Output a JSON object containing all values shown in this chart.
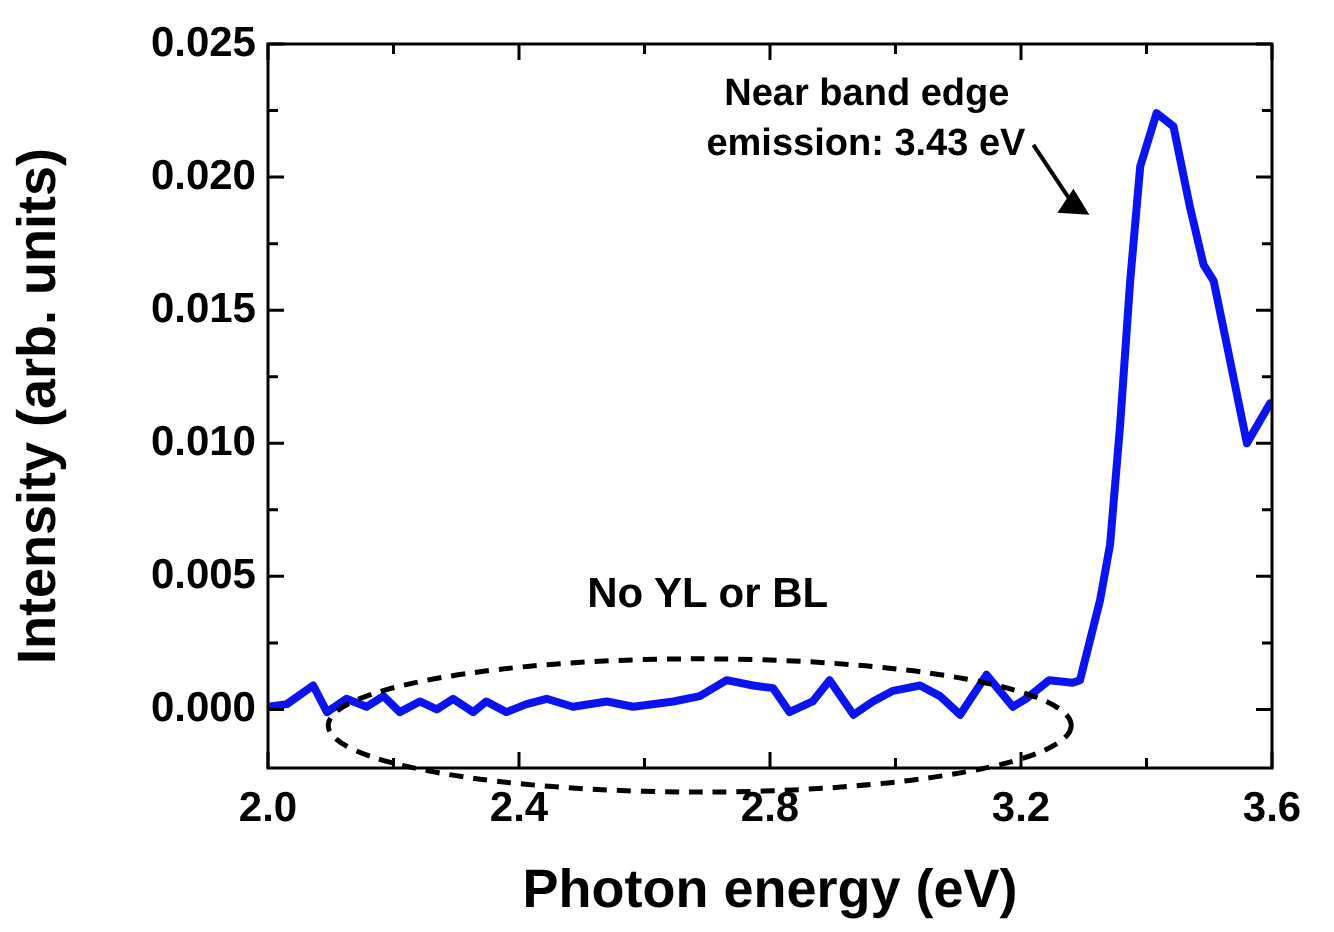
{
  "chart_data": {
    "type": "line",
    "xlabel": "Photon energy (eV)",
    "ylabel": "Intensity (arb. units)",
    "xlim": [
      2.0,
      3.6
    ],
    "xticks": [
      {
        "value": 2.0,
        "label": "2.0"
      },
      2.4,
      2.8,
      3.2,
      3.6
    ],
    "ylim": [
      -0.0022,
      0.025
    ],
    "yticks": [
      {
        "value": 0,
        "label": "0.000"
      },
      {
        "value": 0.005,
        "label": "0.005"
      },
      {
        "value": 0.01,
        "label": "0.010"
      },
      {
        "value": 0.015,
        "label": "0.015"
      },
      {
        "value": 0.02,
        "label": "0.020"
      },
      {
        "value": 0.025,
        "label": "0.025"
      }
    ],
    "grid": false,
    "legend": false,
    "marker": "none",
    "line_style": "solid",
    "annotations": [
      "Near band edge\nemission: 3.43 eV",
      "No YL or BL"
    ],
    "x": [
      2.0,
      2.03,
      2.072,
      2.094,
      2.125,
      2.157,
      2.184,
      2.21,
      2.242,
      2.269,
      2.295,
      2.327,
      2.348,
      2.38,
      2.412,
      2.444,
      2.486,
      2.54,
      2.582,
      2.646,
      2.688,
      2.731,
      2.773,
      2.805,
      2.831,
      2.868,
      2.895,
      2.933,
      2.964,
      2.996,
      3.039,
      3.071,
      3.103,
      3.145,
      3.187,
      3.208,
      3.245,
      3.282,
      3.294,
      3.326,
      3.342,
      3.358,
      3.374,
      3.39,
      3.416,
      3.443,
      3.469,
      3.491,
      3.507,
      3.528,
      3.56,
      3.597
    ],
    "series": [
      {
        "color": "#0a14f0",
        "values": [
          0.0001,
          0.0002,
          0.0009,
          -0.0001,
          0.0004,
          0.0001,
          0.0005,
          -0.0001,
          0.0003,
          0.0,
          0.0004,
          -0.0001,
          0.0003,
          -0.0001,
          0.0002,
          0.0004,
          0.0001,
          0.0003,
          0.0001,
          0.0003,
          0.0005,
          0.0011,
          0.0009,
          0.0008,
          -0.0001,
          0.0003,
          0.0011,
          -0.0002,
          0.0003,
          0.0007,
          0.0009,
          0.0005,
          -0.0002,
          0.0013,
          0.0001,
          0.0004,
          0.0011,
          0.001,
          0.0011,
          0.0041,
          0.0062,
          0.0107,
          0.0161,
          0.0204,
          0.0224,
          0.0219,
          0.0189,
          0.0167,
          0.0161,
          0.0137,
          0.01,
          0.0115
        ]
      }
    ]
  }
}
